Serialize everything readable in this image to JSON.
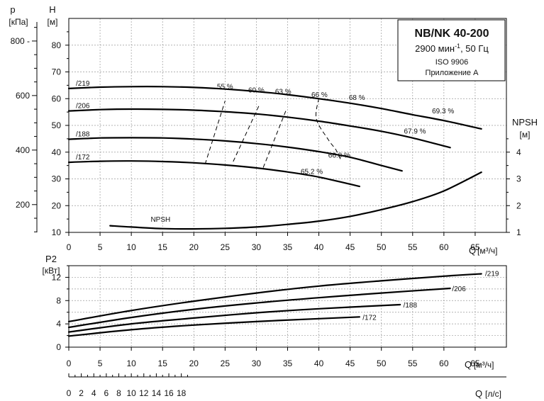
{
  "chart_data": [
    {
      "type": "line",
      "name_box": {
        "model": "NB/NK 40-200",
        "speed": "2900 мин",
        "speed_exp": "-1",
        "speed_tail": ", 50 Гц",
        "standard": "ISO 9906",
        "annex": "Приложение А"
      },
      "ylabel": "H",
      "yunit": "[м]",
      "ylabel_p": "p",
      "yunit_p": "[кПа]",
      "ylabel_npsh": "NPSH",
      "yunit_npsh": "[м]",
      "xlabel": "Q",
      "xunit": "[м³/ч]",
      "xlim": [
        0,
        70
      ],
      "ylim": [
        10,
        90
      ],
      "x_ticks": [
        "0",
        "5",
        "10",
        "15",
        "20",
        "25",
        "30",
        "35",
        "40",
        "45",
        "50",
        "55",
        "60",
        "65"
      ],
      "y_ticks": [
        "10",
        "20",
        "30",
        "40",
        "50",
        "60",
        "70",
        "80"
      ],
      "p_ticks": [
        {
          "label": "200",
          "v": 200
        },
        {
          "label": "400",
          "v": 400
        },
        {
          "label": "600",
          "v": 600
        },
        {
          "label": "800 -",
          "v": 800
        }
      ],
      "npsh_ticks": [
        {
          "label": "1",
          "v": 1
        },
        {
          "label": "2",
          "v": 2
        },
        {
          "label": "3",
          "v": 3
        },
        {
          "label": "4",
          "v": 4
        }
      ],
      "grid": true,
      "series": [
        {
          "name": "/219",
          "x": [
            0,
            5,
            10,
            15,
            20,
            25,
            30,
            35,
            40,
            45,
            50,
            55,
            60,
            66
          ],
          "y": [
            63.8,
            64.3,
            64.5,
            64.5,
            64.2,
            63.6,
            62.7,
            61.5,
            60.0,
            58.3,
            56.3,
            54.0,
            51.8,
            48.7
          ]
        },
        {
          "name": "/206",
          "x": [
            0,
            5,
            10,
            15,
            20,
            25,
            30,
            35,
            40,
            45,
            50,
            55,
            61
          ],
          "y": [
            55.4,
            55.9,
            56.1,
            56.0,
            55.7,
            55.1,
            54.3,
            53.1,
            51.6,
            49.8,
            47.8,
            45.3,
            41.7
          ]
        },
        {
          "name": "/188",
          "x": [
            0,
            5,
            10,
            15,
            20,
            25,
            30,
            35,
            40,
            45,
            50,
            53.3
          ],
          "y": [
            44.8,
            45.3,
            45.4,
            45.3,
            44.9,
            44.2,
            43.2,
            41.9,
            40.2,
            38.1,
            35.0,
            33.0
          ]
        },
        {
          "name": "/172",
          "x": [
            0,
            5,
            10,
            15,
            20,
            25,
            30,
            35,
            40,
            46.5
          ],
          "y": [
            36.2,
            36.6,
            36.7,
            36.5,
            36.0,
            35.2,
            34.1,
            32.6,
            30.7,
            27.2
          ]
        },
        {
          "name": "NPSH",
          "axis": "npsh",
          "x": [
            6.6,
            10,
            15,
            20,
            25,
            30,
            35,
            40,
            45,
            50,
            55,
            60,
            66
          ],
          "y": [
            1.25,
            1.2,
            1.14,
            1.13,
            1.15,
            1.2,
            1.3,
            1.42,
            1.6,
            1.85,
            2.15,
            2.55,
            3.25
          ]
        }
      ],
      "efficiency_lines": [
        {
          "label": "55 %",
          "x": [
            21.8,
            25
          ],
          "y": [
            35.5,
            59.2
          ]
        },
        {
          "label": "60 %",
          "x": [
            26.3,
            30.5
          ],
          "y": [
            36.5,
            57.8
          ]
        },
        {
          "label": "63 %",
          "x": [
            31.1,
            34.7
          ],
          "y": [
            34.2,
            55.4
          ]
        },
        {
          "label": "66 %",
          "x": [
            40,
            39.6,
            41.5,
            42.7,
            43.5
          ],
          "y": [
            60.2,
            52.5,
            44.7,
            41.0,
            37.2
          ]
        }
      ],
      "annotations": [
        {
          "text": "55 %",
          "x": 23.7,
          "y": 63.7
        },
        {
          "text": "60 %",
          "x": 28.7,
          "y": 62.3
        },
        {
          "text": "63 %",
          "x": 33.0,
          "y": 61.8
        },
        {
          "text": "66 %",
          "x": 38.8,
          "y": 60.6
        },
        {
          "text": "68 %",
          "x": 44.8,
          "y": 59.5
        },
        {
          "text": "69.3 %",
          "x": 58.1,
          "y": 54.5
        },
        {
          "text": "67.9 %",
          "x": 53.6,
          "y": 46.9
        },
        {
          "text": "66.0 %",
          "x": 41.5,
          "y": 38.0
        },
        {
          "text": "65.2 %",
          "x": 37.1,
          "y": 31.9
        },
        {
          "text": "NPSH",
          "x": 13.1,
          "y": 14.0
        }
      ]
    },
    {
      "type": "line",
      "ylabel": "P2",
      "yunit": "[кВт]",
      "xlabel": "Q",
      "xunit": "[м³/ч]",
      "xlim": [
        0,
        70
      ],
      "ylim": [
        0,
        14
      ],
      "x_ticks": [
        "0",
        "5",
        "10",
        "15",
        "20",
        "25",
        "30",
        "35",
        "40",
        "45",
        "50",
        "55",
        "60",
        "65"
      ],
      "y_ticks": [
        "0",
        "4",
        "8",
        "12"
      ],
      "grid": true,
      "series": [
        {
          "name": "/219",
          "x": [
            0,
            10,
            20,
            30,
            40,
            50,
            60,
            66
          ],
          "y": [
            4.4,
            6.3,
            7.9,
            9.3,
            10.5,
            11.4,
            12.2,
            12.6
          ]
        },
        {
          "name": "/206",
          "x": [
            0,
            10,
            20,
            30,
            40,
            50,
            61
          ],
          "y": [
            3.4,
            5.1,
            6.5,
            7.6,
            8.5,
            9.3,
            10.1
          ]
        },
        {
          "name": "/188",
          "x": [
            0,
            10,
            20,
            30,
            40,
            53
          ],
          "y": [
            2.6,
            4.0,
            5.0,
            5.9,
            6.6,
            7.3
          ]
        },
        {
          "name": "/172",
          "x": [
            0,
            10,
            20,
            30,
            40,
            46.5
          ],
          "y": [
            1.9,
            3.0,
            3.8,
            4.4,
            4.9,
            5.2
          ]
        }
      ],
      "series_labels": [
        {
          "text": "/219",
          "x": 66.6,
          "y": 12.7
        },
        {
          "text": "/206",
          "x": 61.3,
          "y": 10.1
        },
        {
          "text": "/188",
          "x": 53.5,
          "y": 7.3
        },
        {
          "text": "/172",
          "x": 47.0,
          "y": 5.2
        }
      ]
    },
    {
      "type": "axis",
      "xlabel": "Q",
      "xunit": "[л/с]",
      "xlim": [
        0,
        19.44
      ],
      "x_ticks": [
        "0",
        "2",
        "4",
        "6",
        "8",
        "10",
        "12",
        "14",
        "16",
        "18"
      ]
    }
  ]
}
